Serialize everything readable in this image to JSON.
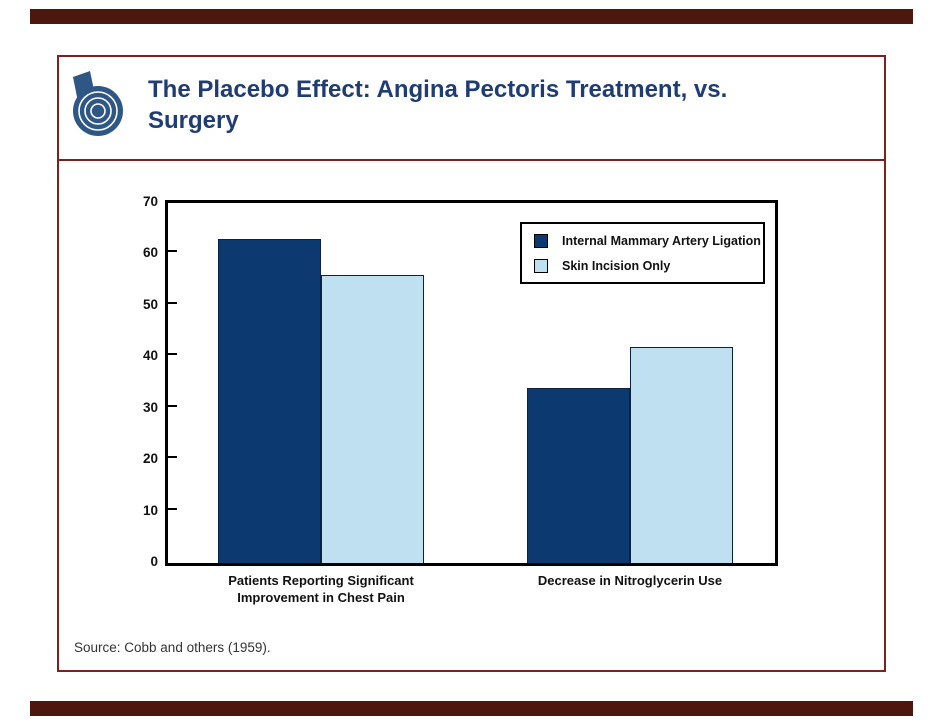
{
  "slide": {
    "title": "The Placebo Effect: Angina Pectoris Treatment, vs. Surgery",
    "title_lines": [
      "The Placebo Effect: Angina Pectoris Treatment, vs.",
      "Surgery"
    ],
    "source_note": "Source: Cobb and others (1959).",
    "logo_name": "brookings-b-logo"
  },
  "colors": {
    "accent_maroon_bar": "#4C170F",
    "frame_border_red": "#7B2220",
    "title_blue": "#1F3D73",
    "logo_blue": "#2E5786",
    "series1_navy": "#0C3A70",
    "series2_lightblue": "#BFE0F1",
    "axis_black": "#000000"
  },
  "chart_data": {
    "type": "bar",
    "title": "",
    "xlabel": "",
    "ylabel": "",
    "categories": [
      "Patients Reporting Significant Improvement in Chest Pain",
      "Decrease in Nitroglycerin Use"
    ],
    "category_label_lines": [
      [
        "Patients Reporting Significant",
        "Improvement in Chest Pain"
      ],
      [
        "Decrease in Nitroglycerin Use"
      ]
    ],
    "series": [
      {
        "name": "Internal Mammary Artery Ligation",
        "color": "#0C3A70",
        "values": [
          63,
          34
        ]
      },
      {
        "name": "Skin Incision Only",
        "color": "#BFE0F1",
        "values": [
          56,
          42
        ]
      }
    ],
    "ylim": [
      0,
      70
    ],
    "yticks": [
      0,
      10,
      20,
      30,
      40,
      50,
      60,
      70
    ],
    "grid": false,
    "legend_position": "top-right-inside"
  }
}
